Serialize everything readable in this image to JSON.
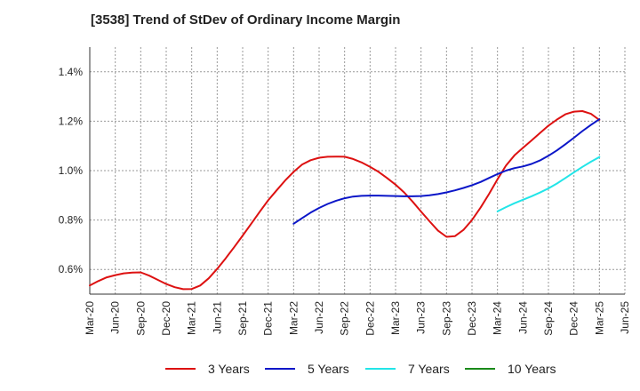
{
  "chart_data": {
    "type": "line",
    "title": "[3538]  Trend of StDev of Ordinary Income Margin",
    "xlabel": "",
    "ylabel": "",
    "x_ticks": [
      "Mar-20",
      "Jun-20",
      "Sep-20",
      "Dec-20",
      "Mar-21",
      "Jun-21",
      "Sep-21",
      "Dec-21",
      "Mar-22",
      "Jun-22",
      "Sep-22",
      "Dec-22",
      "Mar-23",
      "Jun-23",
      "Sep-23",
      "Dec-23",
      "Mar-24",
      "Jun-24",
      "Sep-24",
      "Dec-24",
      "Mar-25",
      "Jun-25"
    ],
    "ylim": [
      0.5,
      1.5
    ],
    "y_ticks": [
      0.6,
      0.8,
      1.0,
      1.2,
      1.4
    ],
    "y_tick_labels": [
      "0.6%",
      "0.8%",
      "1.0%",
      "1.2%",
      "1.4%"
    ],
    "grid": true,
    "legend_position": "bottom",
    "series": [
      {
        "name": "3 Years",
        "color": "#dd1111",
        "x": [
          "Mar-20",
          "Apr-20",
          "May-20",
          "Jun-20",
          "Jul-20",
          "Aug-20",
          "Sep-20",
          "Oct-20",
          "Nov-20",
          "Dec-20",
          "Jan-21",
          "Feb-21",
          "Mar-21",
          "Apr-21",
          "May-21",
          "Jun-21",
          "Jul-21",
          "Aug-21",
          "Sep-21",
          "Oct-21",
          "Nov-21",
          "Dec-21",
          "Jan-22",
          "Feb-22",
          "Mar-22",
          "Apr-22",
          "May-22",
          "Jun-22",
          "Jul-22",
          "Aug-22",
          "Sep-22",
          "Oct-22",
          "Nov-22",
          "Dec-22",
          "Jan-23",
          "Feb-23",
          "Mar-23",
          "Apr-23",
          "May-23",
          "Jun-23",
          "Jul-23",
          "Aug-23",
          "Sep-23",
          "Oct-23",
          "Nov-23",
          "Dec-23",
          "Jan-24",
          "Feb-24",
          "Mar-24",
          "Apr-24",
          "May-24",
          "Jun-24",
          "Jul-24",
          "Aug-24",
          "Sep-24",
          "Oct-24",
          "Nov-24",
          "Dec-24",
          "Jan-25",
          "Feb-25",
          "Mar-25"
        ],
        "values": [
          0.535,
          0.553,
          0.568,
          0.577,
          0.584,
          0.587,
          0.588,
          0.575,
          0.558,
          0.541,
          0.528,
          0.52,
          0.521,
          0.535,
          0.564,
          0.602,
          0.645,
          0.69,
          0.737,
          0.785,
          0.833,
          0.88,
          0.92,
          0.96,
          0.995,
          1.025,
          1.042,
          1.052,
          1.056,
          1.057,
          1.056,
          1.047,
          1.033,
          1.015,
          0.995,
          0.97,
          0.943,
          0.912,
          0.875,
          0.834,
          0.795,
          0.757,
          0.732,
          0.735,
          0.76,
          0.8,
          0.85,
          0.905,
          0.965,
          1.02,
          1.062,
          1.092,
          1.122,
          1.152,
          1.182,
          1.207,
          1.228,
          1.239,
          1.241,
          1.23,
          1.205
        ]
      },
      {
        "name": "5 Years",
        "color": "#0b16c8",
        "x": [
          "Mar-22",
          "Apr-22",
          "May-22",
          "Jun-22",
          "Jul-22",
          "Aug-22",
          "Sep-22",
          "Oct-22",
          "Nov-22",
          "Dec-22",
          "Jan-23",
          "Feb-23",
          "Mar-23",
          "Apr-23",
          "May-23",
          "Jun-23",
          "Jul-23",
          "Aug-23",
          "Sep-23",
          "Oct-23",
          "Nov-23",
          "Dec-23",
          "Jan-24",
          "Feb-24",
          "Mar-24",
          "Apr-24",
          "May-24",
          "Jun-24",
          "Jul-24",
          "Aug-24",
          "Sep-24",
          "Oct-24",
          "Nov-24",
          "Dec-24",
          "Jan-25",
          "Feb-25",
          "Mar-25"
        ],
        "values": [
          0.785,
          0.808,
          0.83,
          0.849,
          0.865,
          0.878,
          0.888,
          0.895,
          0.898,
          0.899,
          0.899,
          0.898,
          0.897,
          0.896,
          0.896,
          0.897,
          0.9,
          0.905,
          0.912,
          0.92,
          0.93,
          0.941,
          0.954,
          0.97,
          0.986,
          1.0,
          1.01,
          1.017,
          1.027,
          1.041,
          1.06,
          1.082,
          1.107,
          1.133,
          1.16,
          1.185,
          1.208
        ]
      },
      {
        "name": "7 Years",
        "color": "#22e5e8",
        "x": [
          "Mar-24",
          "Apr-24",
          "May-24",
          "Jun-24",
          "Jul-24",
          "Aug-24",
          "Sep-24",
          "Oct-24",
          "Nov-24",
          "Dec-24",
          "Jan-25",
          "Feb-25",
          "Mar-25"
        ],
        "values": [
          0.835,
          0.852,
          0.868,
          0.882,
          0.896,
          0.911,
          0.928,
          0.948,
          0.97,
          0.993,
          1.015,
          1.036,
          1.055
        ]
      },
      {
        "name": "10 Years",
        "color": "#1a8a1a",
        "x": [],
        "values": []
      }
    ]
  }
}
